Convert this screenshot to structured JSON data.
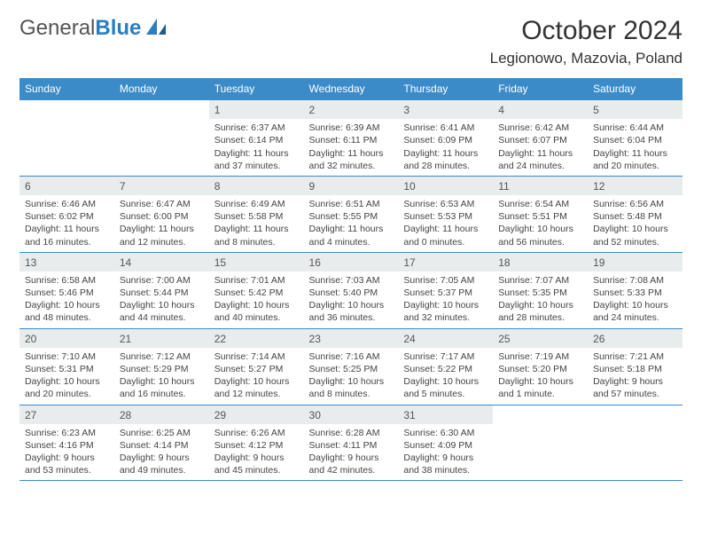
{
  "logo": {
    "part1": "General",
    "part2": "Blue"
  },
  "month": "October 2024",
  "location": "Legionowo, Mazovia, Poland",
  "headers": [
    "Sunday",
    "Monday",
    "Tuesday",
    "Wednesday",
    "Thursday",
    "Friday",
    "Saturday"
  ],
  "colors": {
    "header_bg": "#3b8bc9",
    "border": "#3b8bc9",
    "daynum_bg": "#e8eced"
  },
  "weeks": [
    [
      {
        "n": "",
        "sr": "",
        "ss": "",
        "dl": ""
      },
      {
        "n": "",
        "sr": "",
        "ss": "",
        "dl": ""
      },
      {
        "n": "1",
        "sr": "Sunrise: 6:37 AM",
        "ss": "Sunset: 6:14 PM",
        "dl": "Daylight: 11 hours and 37 minutes."
      },
      {
        "n": "2",
        "sr": "Sunrise: 6:39 AM",
        "ss": "Sunset: 6:11 PM",
        "dl": "Daylight: 11 hours and 32 minutes."
      },
      {
        "n": "3",
        "sr": "Sunrise: 6:41 AM",
        "ss": "Sunset: 6:09 PM",
        "dl": "Daylight: 11 hours and 28 minutes."
      },
      {
        "n": "4",
        "sr": "Sunrise: 6:42 AM",
        "ss": "Sunset: 6:07 PM",
        "dl": "Daylight: 11 hours and 24 minutes."
      },
      {
        "n": "5",
        "sr": "Sunrise: 6:44 AM",
        "ss": "Sunset: 6:04 PM",
        "dl": "Daylight: 11 hours and 20 minutes."
      }
    ],
    [
      {
        "n": "6",
        "sr": "Sunrise: 6:46 AM",
        "ss": "Sunset: 6:02 PM",
        "dl": "Daylight: 11 hours and 16 minutes."
      },
      {
        "n": "7",
        "sr": "Sunrise: 6:47 AM",
        "ss": "Sunset: 6:00 PM",
        "dl": "Daylight: 11 hours and 12 minutes."
      },
      {
        "n": "8",
        "sr": "Sunrise: 6:49 AM",
        "ss": "Sunset: 5:58 PM",
        "dl": "Daylight: 11 hours and 8 minutes."
      },
      {
        "n": "9",
        "sr": "Sunrise: 6:51 AM",
        "ss": "Sunset: 5:55 PM",
        "dl": "Daylight: 11 hours and 4 minutes."
      },
      {
        "n": "10",
        "sr": "Sunrise: 6:53 AM",
        "ss": "Sunset: 5:53 PM",
        "dl": "Daylight: 11 hours and 0 minutes."
      },
      {
        "n": "11",
        "sr": "Sunrise: 6:54 AM",
        "ss": "Sunset: 5:51 PM",
        "dl": "Daylight: 10 hours and 56 minutes."
      },
      {
        "n": "12",
        "sr": "Sunrise: 6:56 AM",
        "ss": "Sunset: 5:48 PM",
        "dl": "Daylight: 10 hours and 52 minutes."
      }
    ],
    [
      {
        "n": "13",
        "sr": "Sunrise: 6:58 AM",
        "ss": "Sunset: 5:46 PM",
        "dl": "Daylight: 10 hours and 48 minutes."
      },
      {
        "n": "14",
        "sr": "Sunrise: 7:00 AM",
        "ss": "Sunset: 5:44 PM",
        "dl": "Daylight: 10 hours and 44 minutes."
      },
      {
        "n": "15",
        "sr": "Sunrise: 7:01 AM",
        "ss": "Sunset: 5:42 PM",
        "dl": "Daylight: 10 hours and 40 minutes."
      },
      {
        "n": "16",
        "sr": "Sunrise: 7:03 AM",
        "ss": "Sunset: 5:40 PM",
        "dl": "Daylight: 10 hours and 36 minutes."
      },
      {
        "n": "17",
        "sr": "Sunrise: 7:05 AM",
        "ss": "Sunset: 5:37 PM",
        "dl": "Daylight: 10 hours and 32 minutes."
      },
      {
        "n": "18",
        "sr": "Sunrise: 7:07 AM",
        "ss": "Sunset: 5:35 PM",
        "dl": "Daylight: 10 hours and 28 minutes."
      },
      {
        "n": "19",
        "sr": "Sunrise: 7:08 AM",
        "ss": "Sunset: 5:33 PM",
        "dl": "Daylight: 10 hours and 24 minutes."
      }
    ],
    [
      {
        "n": "20",
        "sr": "Sunrise: 7:10 AM",
        "ss": "Sunset: 5:31 PM",
        "dl": "Daylight: 10 hours and 20 minutes."
      },
      {
        "n": "21",
        "sr": "Sunrise: 7:12 AM",
        "ss": "Sunset: 5:29 PM",
        "dl": "Daylight: 10 hours and 16 minutes."
      },
      {
        "n": "22",
        "sr": "Sunrise: 7:14 AM",
        "ss": "Sunset: 5:27 PM",
        "dl": "Daylight: 10 hours and 12 minutes."
      },
      {
        "n": "23",
        "sr": "Sunrise: 7:16 AM",
        "ss": "Sunset: 5:25 PM",
        "dl": "Daylight: 10 hours and 8 minutes."
      },
      {
        "n": "24",
        "sr": "Sunrise: 7:17 AM",
        "ss": "Sunset: 5:22 PM",
        "dl": "Daylight: 10 hours and 5 minutes."
      },
      {
        "n": "25",
        "sr": "Sunrise: 7:19 AM",
        "ss": "Sunset: 5:20 PM",
        "dl": "Daylight: 10 hours and 1 minute."
      },
      {
        "n": "26",
        "sr": "Sunrise: 7:21 AM",
        "ss": "Sunset: 5:18 PM",
        "dl": "Daylight: 9 hours and 57 minutes."
      }
    ],
    [
      {
        "n": "27",
        "sr": "Sunrise: 6:23 AM",
        "ss": "Sunset: 4:16 PM",
        "dl": "Daylight: 9 hours and 53 minutes."
      },
      {
        "n": "28",
        "sr": "Sunrise: 6:25 AM",
        "ss": "Sunset: 4:14 PM",
        "dl": "Daylight: 9 hours and 49 minutes."
      },
      {
        "n": "29",
        "sr": "Sunrise: 6:26 AM",
        "ss": "Sunset: 4:12 PM",
        "dl": "Daylight: 9 hours and 45 minutes."
      },
      {
        "n": "30",
        "sr": "Sunrise: 6:28 AM",
        "ss": "Sunset: 4:11 PM",
        "dl": "Daylight: 9 hours and 42 minutes."
      },
      {
        "n": "31",
        "sr": "Sunrise: 6:30 AM",
        "ss": "Sunset: 4:09 PM",
        "dl": "Daylight: 9 hours and 38 minutes."
      },
      {
        "n": "",
        "sr": "",
        "ss": "",
        "dl": ""
      },
      {
        "n": "",
        "sr": "",
        "ss": "",
        "dl": ""
      }
    ]
  ]
}
